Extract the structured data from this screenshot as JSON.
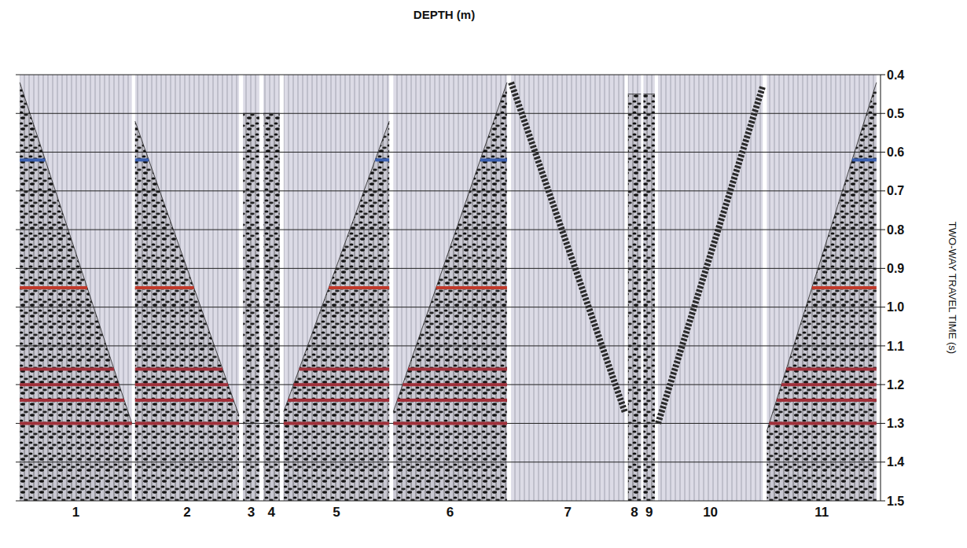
{
  "chart_data": {
    "type": "seismic",
    "title": "DEPTH (m)",
    "y_label": "TWO-WAY TRAVEL TIME (s)",
    "ylim": [
      0.4,
      1.5
    ],
    "yticks": [
      0.4,
      0.5,
      0.6,
      0.7,
      0.8,
      0.9,
      {
        "value": 1,
        "label": "1.0"
      },
      1.1,
      1.2,
      1.3,
      1.4,
      1.5
    ],
    "grid": true,
    "panels": [
      {
        "label": "1",
        "type": "wedge",
        "times": [
          0.42,
          1.3
        ]
      },
      {
        "label": "2",
        "type": "wedge",
        "times": [
          0.52,
          1.28
        ]
      },
      {
        "label": "3",
        "type": "trace",
        "times": [
          0.5,
          0.5
        ]
      },
      {
        "label": "4",
        "type": "trace",
        "times": [
          0.5,
          0.5
        ]
      },
      {
        "label": "5",
        "type": "wedge",
        "times": [
          1.27,
          0.52
        ]
      },
      {
        "label": "6",
        "type": "wedge",
        "times": [
          1.27,
          0.42
        ]
      },
      {
        "label": "7",
        "type": "event",
        "times": [
          0.42,
          1.27
        ]
      },
      {
        "label": "8",
        "type": "trace",
        "times": [
          0.45,
          0.45
        ]
      },
      {
        "label": "9",
        "type": "trace",
        "times": [
          0.45,
          0.45
        ]
      },
      {
        "label": "10",
        "type": "event",
        "times": [
          1.3,
          0.43
        ]
      },
      {
        "label": "11",
        "type": "wedge",
        "times": [
          1.32,
          0.42
        ]
      }
    ],
    "horizons": [
      {
        "time": 0.62,
        "color": "#3a5fb0"
      },
      {
        "time": 0.95,
        "color": "#c0392b"
      },
      {
        "time": 1.16,
        "color": "#a0303a"
      },
      {
        "time": 1.2,
        "color": "#a0303a"
      },
      {
        "time": 1.24,
        "color": "#a0303a"
      },
      {
        "time": 1.3,
        "color": "#a0303a"
      }
    ]
  }
}
